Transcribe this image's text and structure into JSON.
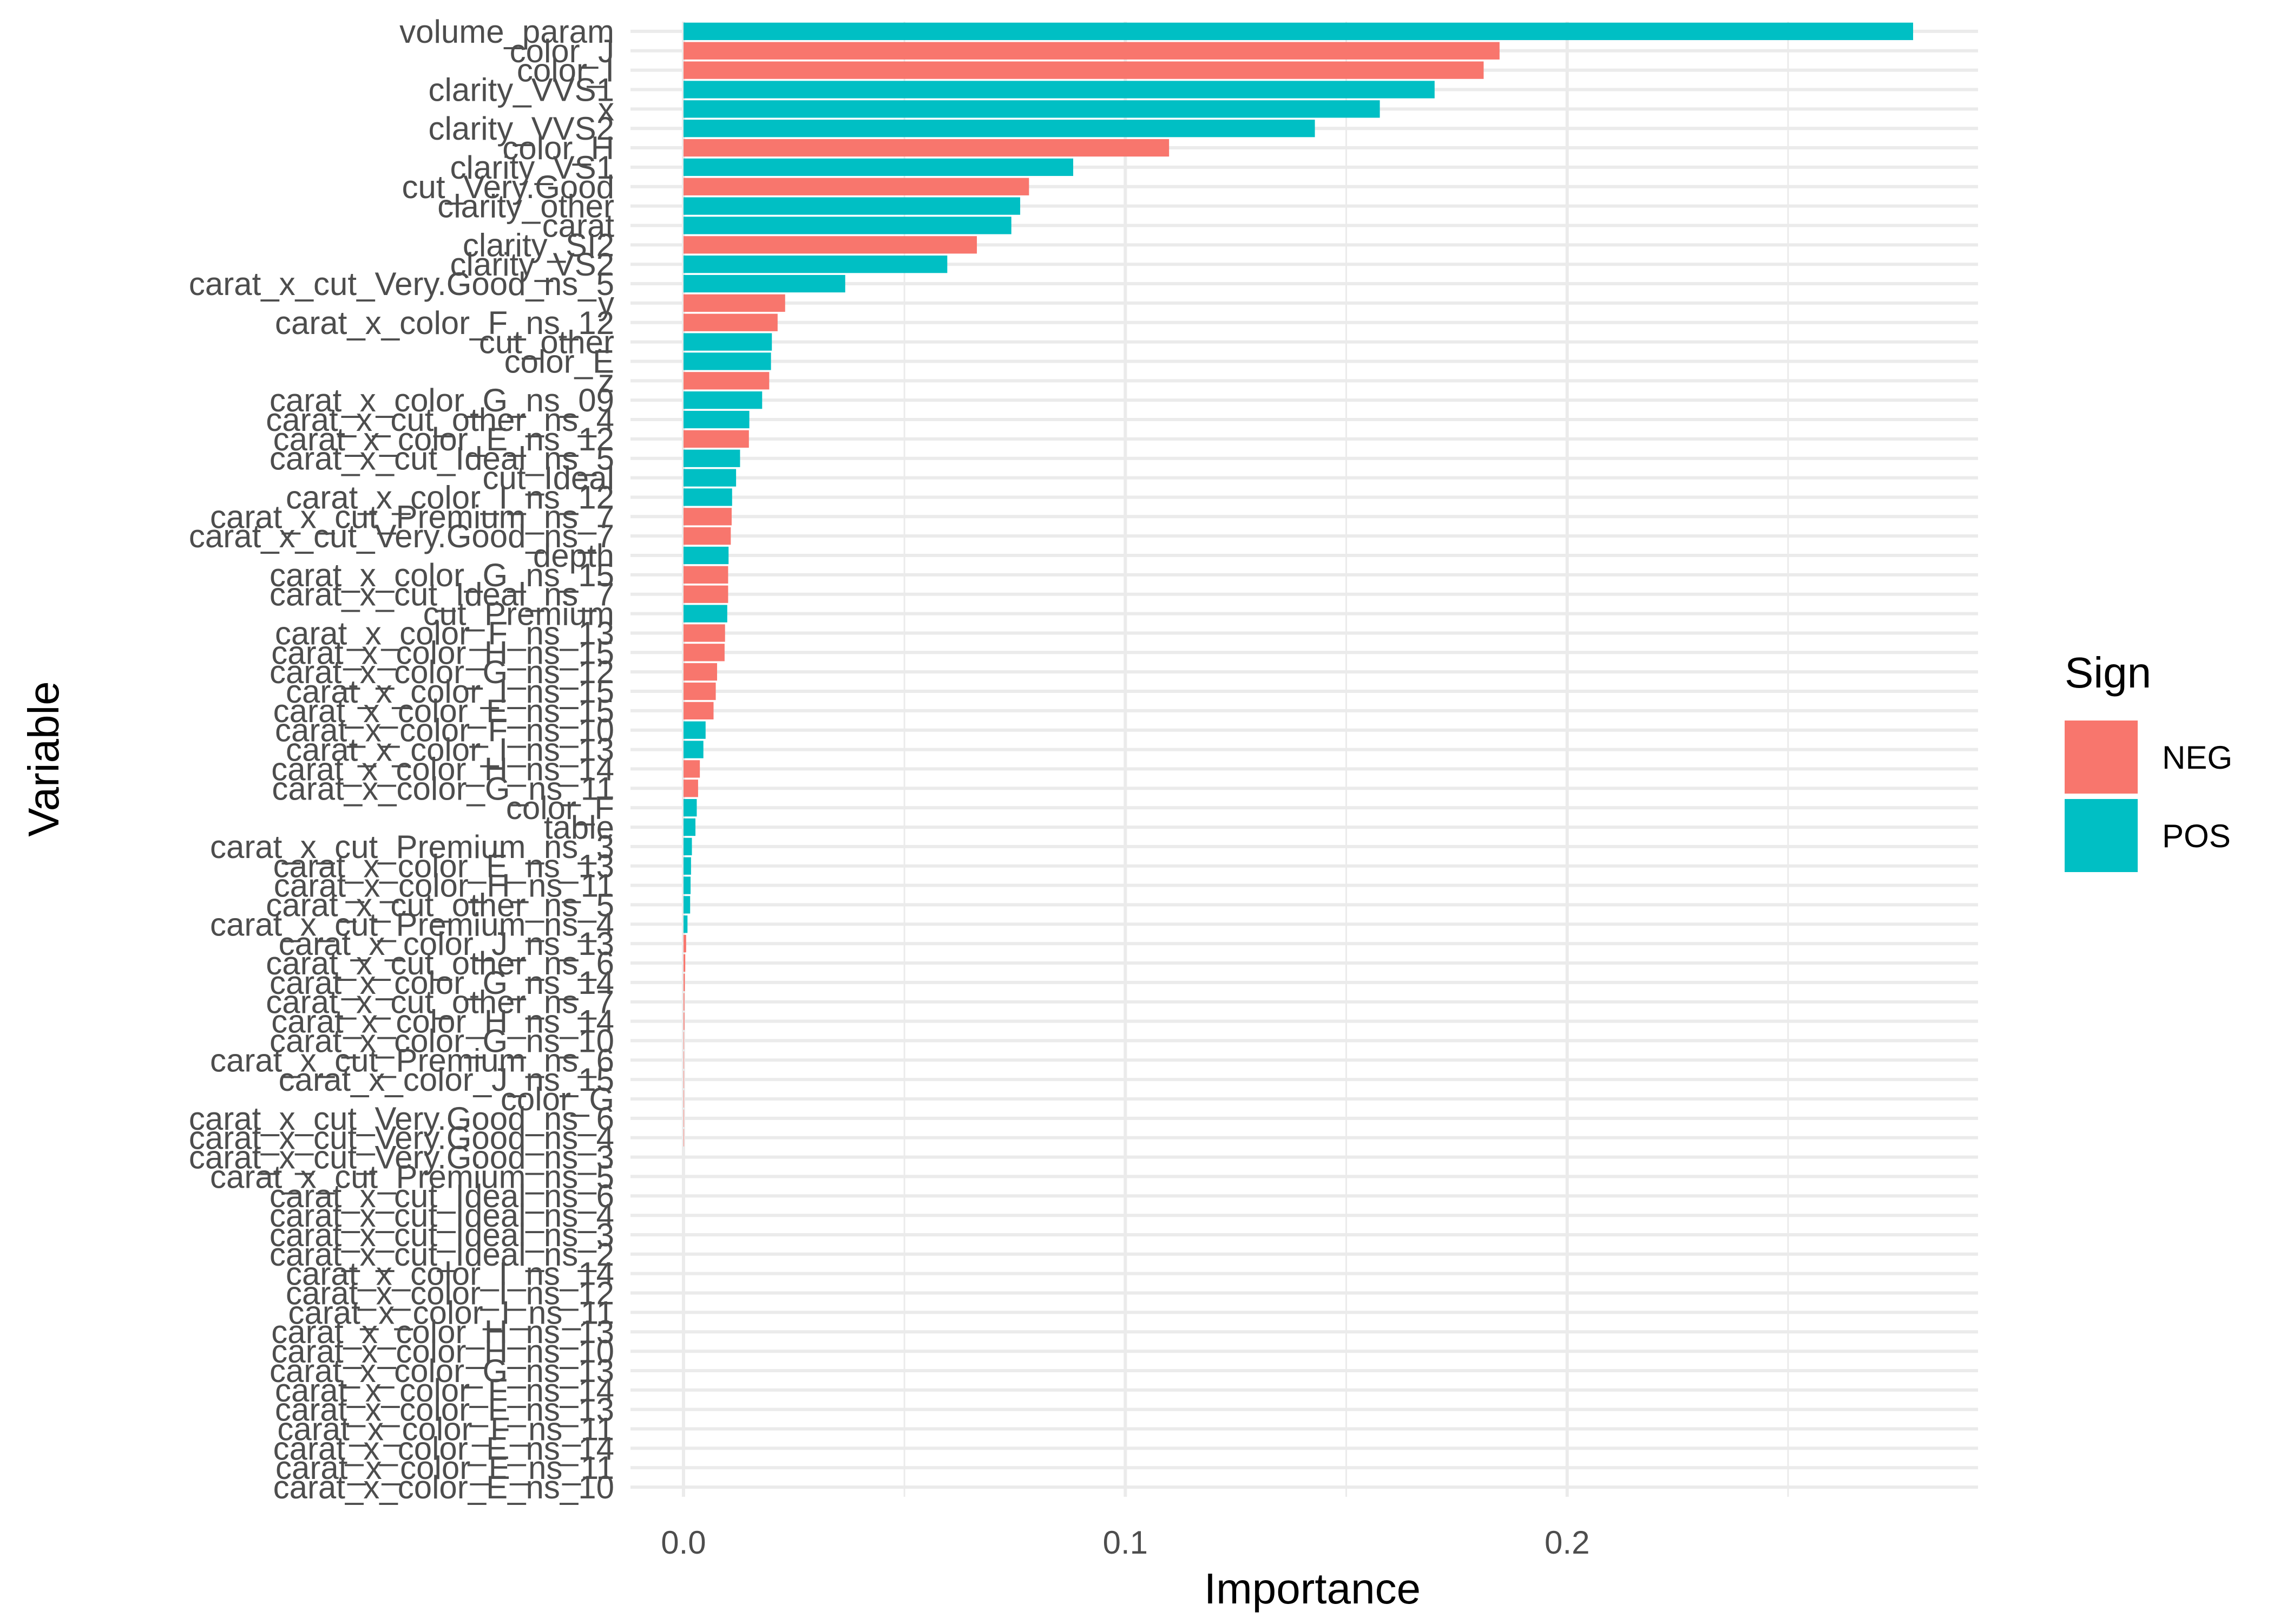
{
  "chart_data": {
    "type": "bar",
    "orientation": "horizontal",
    "xlabel": "Importance",
    "ylabel": "Variable",
    "xlim": [
      -0.012,
      0.293
    ],
    "x_ticks": [
      0.0,
      0.1,
      0.2
    ],
    "x_tick_labels": [
      "0.0",
      "0.1",
      "0.2"
    ],
    "grid": true,
    "legend": {
      "title": "Sign",
      "placement": "right",
      "entries": [
        {
          "name": "NEG",
          "color": "#F8766D"
        },
        {
          "name": "POS",
          "color": "#00BFC4"
        }
      ]
    },
    "colors": {
      "NEG": "#F8766D",
      "POS": "#00BFC4"
    },
    "categories": [
      "volume_param",
      "color_J",
      "color_I",
      "clarity_VVS1",
      "x",
      "clarity_VVS2",
      "color_H",
      "clarity_VS1",
      "cut_Very.Good",
      "clarity_other",
      "carat",
      "clarity_SI2",
      "clarity_VS2",
      "carat_x_cut_Very.Good_ns_5",
      "y",
      "carat_x_color_F_ns_12",
      "cut_other",
      "color_E",
      "z",
      "carat_x_color_G_ns_09",
      "carat_x_cut_other_ns_4",
      "carat_x_color_E_ns_12",
      "carat_x_cut_Ideal_ns_5",
      "cut_Ideal",
      "carat_x_color_I_ns_12",
      "carat_x_cut_Premium_ns_7",
      "carat_x_cut_Very.Good_ns_7",
      "depth",
      "carat_x_color_G_ns_15",
      "carat_x_cut_Ideal_ns_7",
      "cut_Premium",
      "carat_x_color_F_ns_13",
      "carat_x_color_H_ns_15",
      "carat_x_color_G_ns_12",
      "carat_x_color_I_ns_15",
      "carat_x_color_E_ns_15",
      "carat_x_color_F_ns_10",
      "carat_x_color_I_ns_13",
      "carat_x_color_H_ns_14",
      "carat_x_color_G_ns_11",
      "color_F",
      "table",
      "carat_x_cut_Premium_ns_3",
      "carat_x_color_E_ns_13",
      "carat_x_color_H_ns_11",
      "carat_x_cut_other_ns_5",
      "carat_x_cut_Premium_ns_4",
      "carat_x_color_J_ns_13",
      "carat_x_cut_other_ns_6",
      "carat_x_color_G_ns_14",
      "carat_x_cut_other_ns_7",
      "carat_x_color_H_ns_14",
      "carat_x_color_G_ns_10",
      "carat_x_cut_Premium_ns_6",
      "carat_x_color_J_ns_15",
      "color_G",
      "carat_x_cut_Very.Good_ns_6",
      "carat_x_cut_Very.Good_ns_4",
      "carat_x_cut_Very.Good_ns_3",
      "carat_x_cut_Premium_ns_5",
      "carat_x_cut_Ideal_ns_6",
      "carat_x_cut_Ideal_ns_4",
      "carat_x_cut_Ideal_ns_3",
      "carat_x_cut_Ideal_ns_2",
      "carat_x_color_I_ns_14",
      "carat_x_color_I_ns_12",
      "carat_x_color_I_ns_11",
      "carat_x_color_H_ns_13",
      "carat_x_color_H_ns_10",
      "carat_x_color_G_ns_13",
      "carat_x_color_F_ns_14",
      "carat_x_color_F_ns_13",
      "carat_x_color_F_ns_11",
      "carat_x_color_E_ns_14",
      "carat_x_color_E_ns_11",
      "carat_x_color_E_ns_10"
    ],
    "values": [
      0.2783,
      0.1847,
      0.1811,
      0.17,
      0.1576,
      0.1429,
      0.1099,
      0.0882,
      0.0782,
      0.0762,
      0.0742,
      0.0664,
      0.0597,
      0.0366,
      0.023,
      0.0213,
      0.02,
      0.0198,
      0.0194,
      0.0178,
      0.0149,
      0.0148,
      0.0128,
      0.0119,
      0.011,
      0.0109,
      0.0107,
      0.0102,
      0.0101,
      0.0101,
      0.0099,
      0.0094,
      0.0093,
      0.0076,
      0.0073,
      0.0068,
      0.005,
      0.0045,
      0.0037,
      0.0033,
      0.003,
      0.0027,
      0.0019,
      0.0017,
      0.0016,
      0.0015,
      0.0009,
      0.0006,
      0.0004,
      0.0003,
      0.0002,
      0.0002,
      0.0001,
      0.0001,
      0.0001,
      0.0001,
      0.0001,
      0.0001,
      0.0,
      0.0,
      0.0,
      0.0,
      0.0,
      0.0,
      0.0,
      0.0,
      0.0,
      0.0,
      0.0,
      0.0,
      0.0,
      0.0,
      0.0,
      0.0,
      0.0,
      0.0
    ],
    "signs": [
      "POS",
      "NEG",
      "NEG",
      "POS",
      "POS",
      "POS",
      "NEG",
      "POS",
      "NEG",
      "POS",
      "POS",
      "NEG",
      "POS",
      "POS",
      "NEG",
      "NEG",
      "POS",
      "POS",
      "NEG",
      "POS",
      "POS",
      "NEG",
      "POS",
      "POS",
      "POS",
      "NEG",
      "NEG",
      "POS",
      "NEG",
      "NEG",
      "POS",
      "NEG",
      "NEG",
      "NEG",
      "NEG",
      "NEG",
      "POS",
      "POS",
      "NEG",
      "NEG",
      "POS",
      "POS",
      "POS",
      "POS",
      "POS",
      "POS",
      "POS",
      "NEG",
      "NEG",
      "NEG",
      "NEG",
      "NEG",
      "NEG",
      "NEG",
      "NEG",
      "NEG",
      "NEG",
      "NEG",
      "NEG",
      "NEG",
      "NEG",
      "NEG",
      "NEG",
      "NEG",
      "NEG",
      "NEG",
      "NEG",
      "NEG",
      "NEG",
      "NEG",
      "NEG",
      "NEG",
      "NEG",
      "NEG",
      "NEG",
      "NEG"
    ]
  }
}
